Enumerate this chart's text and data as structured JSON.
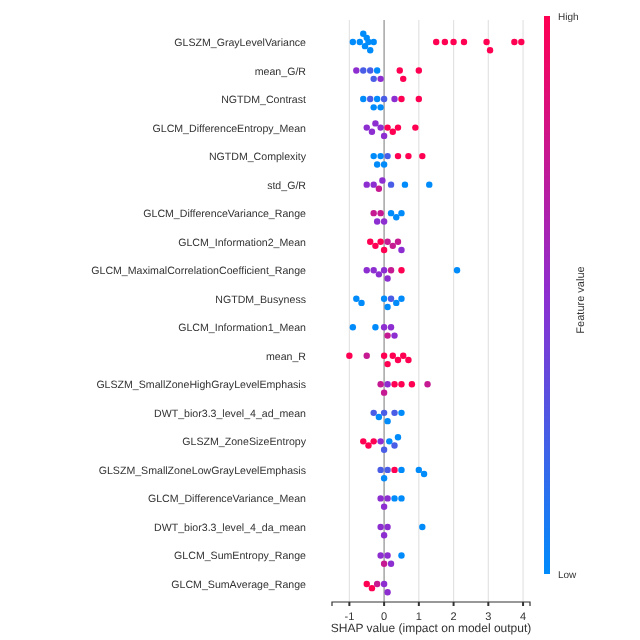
{
  "chart_data": {
    "type": "scatter",
    "orientation": "horizontal",
    "xlabel": "SHAP value (impact on model output)",
    "clabel": "Feature value",
    "annotations": [
      "High",
      "Low"
    ],
    "grid": "x",
    "marker": "circle",
    "categories": [
      "GLSZM_GrayLevelVariance",
      "mean_G/R",
      "NGTDM_Contrast",
      "GLCM_DifferenceEntropy_Mean",
      "NGTDM_Complexity",
      "std_G/R",
      "GLCM_DifferenceVariance_Range",
      "GLCM_Information2_Mean",
      "GLCM_MaximalCorrelationCoefficient_Range",
      "NGTDM_Busyness",
      "GLCM_Information1_Mean",
      "mean_R",
      "GLSZM_SmallZoneHighGrayLevelEmphasis",
      "DWT_bior3.3_level_4_ad_mean",
      "GLSZM_ZoneSizeEntropy",
      "GLSZM_SmallZoneLowGrayLevelEmphasis",
      "GLCM_DifferenceVariance_Mean",
      "DWT_bior3.3_level_4_da_mean",
      "GLCM_SumEntropy_Range",
      "GLCM_SumAverage_Range"
    ],
    "xlim": [
      -1.5,
      4.2
    ],
    "xticks": [
      -1,
      0,
      1,
      2,
      3,
      4
    ],
    "series": [
      {
        "values": [
          -0.9,
          -0.8,
          -0.6,
          -0.5,
          -0.3,
          -0.5,
          -0.3,
          -0.4,
          -0.5,
          -0.8,
          -0.9,
          -1.0,
          -0.1,
          -0.3,
          -0.6,
          -0.1,
          -0.1,
          -0.1,
          -0.1,
          -0.5
        ],
        "colors": [
          "#008bfb",
          "#8d2ed0",
          "#008bfb",
          "#8d2ed0",
          "#008bfb",
          "#8d2ed0",
          "#c61a92",
          "#ff0052",
          "#8d2ed0",
          "#008bfb",
          "#008bfb",
          "#ff0052",
          "#c61a92",
          "#4a5de6",
          "#ff0052",
          "#4a5de6",
          "#8d2ed0",
          "#8d2ed0",
          "#8d2ed0",
          "#ff0052"
        ]
      },
      {
        "values": [
          -0.7,
          -0.6,
          -0.4,
          -0.35,
          -0.2,
          -0.3,
          -0.2,
          -0.25,
          -0.3,
          -0.65,
          -0.25,
          -0.5,
          0,
          -0.15,
          -0.45,
          0,
          0,
          0,
          0,
          -0.35
        ],
        "colors": [
          "#008bfb",
          "#4a5de6",
          "#4a5de6",
          "#8d2ed0",
          "#008bfb",
          "#8d2ed0",
          "#8d2ed0",
          "#ff0052",
          "#8d2ed0",
          "#008bfb",
          "#008bfb",
          "#c61a92",
          "#c61a92",
          "#008bfb",
          "#ff0052",
          "#008bfb",
          "#8d2ed0",
          "#8d2ed0",
          "#c61a92",
          "#ff0052"
        ]
      },
      {
        "values": [
          -0.55,
          -0.4,
          -0.3,
          -0.25,
          -0.1,
          -0.15,
          -0.1,
          -0.1,
          -0.15,
          0,
          0,
          0,
          0.1,
          0,
          -0.3,
          0.1,
          0.1,
          0.1,
          0.1,
          -0.2
        ],
        "colors": [
          "#008bfb",
          "#4a5de6",
          "#008bfb",
          "#8d2ed0",
          "#008bfb",
          "#c61a92",
          "#c61a92",
          "#ff0052",
          "#8d2ed0",
          "#008bfb",
          "#8d2ed0",
          "#ff0052",
          "#8d2ed0",
          "#4a5de6",
          "#ff0052",
          "#4a5de6",
          "#8d2ed0",
          "#8d2ed0",
          "#8d2ed0",
          "#c61a92"
        ]
      },
      {
        "values": [
          -0.5,
          -0.3,
          -0.2,
          -0.1,
          0,
          -0.05,
          0,
          0,
          0,
          0.1,
          0.1,
          0.1,
          0.3,
          0.1,
          -0.1,
          0.3,
          0.3,
          1.1,
          0.2,
          0
        ],
        "colors": [
          "#008bfb",
          "#4a5de6",
          "#008bfb",
          "#8d2ed0",
          "#008bfb",
          "#8d2ed0",
          "#8d2ed0",
          "#ff0052",
          "#8d2ed0",
          "#008bfb",
          "#c61a92",
          "#ff0052",
          "#ff0052",
          "#008bfb",
          "#8d2ed0",
          "#ff0052",
          "#008bfb",
          "#008bfb",
          "#8d2ed0",
          "#8d2ed0"
        ]
      },
      {
        "values": [
          -0.4,
          -0.2,
          -0.1,
          0,
          0.1,
          0.2,
          0.2,
          0.1,
          0.1,
          0.2,
          0.2,
          0.25,
          0.5,
          0.3,
          0,
          0.5,
          0.5,
          null,
          0.5,
          0.1
        ],
        "colors": [
          "#008bfb",
          "#008bfb",
          "#008bfb",
          "#8d2ed0",
          "#4a5de6",
          "#4a5de6",
          "#008bfb",
          "#c61a92",
          "#8d2ed0",
          "#4a5de6",
          "#8d2ed0",
          "#ff0052",
          "#ff0052",
          "#4a5de6",
          "#4a5de6",
          "#008bfb",
          "#008bfb",
          null,
          "#008bfb",
          "#8d2ed0"
        ]
      },
      {
        "values": [
          -0.3,
          -0.1,
          0,
          0.1,
          0.4,
          0.6,
          0.35,
          0.25,
          0.2,
          0.35,
          0.3,
          0.4,
          0.8,
          0.5,
          0.15,
          1.0,
          null,
          null,
          null,
          null
        ],
        "colors": [
          "#008bfb",
          "#8d2ed0",
          "#4a5de6",
          "#ff0052",
          "#ff0052",
          "#008bfb",
          "#008bfb",
          "#c61a92",
          "#c61a92",
          "#008bfb",
          "#8d2ed0",
          "#ff0052",
          "#ff0052",
          "#008bfb",
          "#008bfb",
          "#008bfb",
          null,
          null,
          null,
          null
        ]
      },
      {
        "values": [
          -0.6,
          0.45,
          0.3,
          0.25,
          0.7,
          1.3,
          0.5,
          0.4,
          0.5,
          0.5,
          null,
          0.55,
          1.25,
          null,
          0.3,
          1.15,
          null,
          null,
          null,
          null
        ],
        "colors": [
          "#008bfb",
          "#ff0052",
          "#8d2ed0",
          "#ff0052",
          "#ff0052",
          "#008bfb",
          "#008bfb",
          "#c61a92",
          "#ff0052",
          "#008bfb",
          null,
          "#ff0052",
          "#c61a92",
          null,
          "#4a5de6",
          "#008bfb",
          null,
          null,
          null,
          null
        ]
      },
      {
        "values": [
          -0.45,
          0.55,
          0.5,
          0.4,
          1.1,
          null,
          null,
          0.5,
          2.1,
          null,
          null,
          0.7,
          null,
          null,
          0.4,
          null,
          null,
          null,
          null,
          null
        ],
        "colors": [
          "#008bfb",
          "#ff0052",
          "#ff0052",
          "#ff0052",
          "#ff0052",
          null,
          null,
          "#8d2ed0",
          "#008bfb",
          null,
          null,
          "#ff0052",
          null,
          null,
          "#008bfb",
          null,
          null,
          null,
          null,
          null
        ]
      },
      {
        "values": [
          1.5,
          1.0,
          1.0,
          0.9,
          null,
          null,
          null,
          null,
          null,
          null,
          null,
          null,
          null,
          null,
          null,
          null,
          null,
          null,
          null,
          null
        ],
        "colors": [
          "#ff0052",
          "#ff0052",
          "#ff0052",
          "#ff0052",
          null,
          null,
          null,
          null,
          null,
          null,
          null,
          null,
          null,
          null,
          null,
          null,
          null,
          null,
          null,
          null
        ]
      },
      {
        "values": [
          1.75,
          null,
          null,
          null,
          null,
          null,
          null,
          null,
          null,
          null,
          null,
          null,
          null,
          null,
          null,
          null,
          null,
          null,
          null,
          null
        ],
        "colors": [
          "#ff0052",
          null,
          null,
          null,
          null,
          null,
          null,
          null,
          null,
          null,
          null,
          null,
          null,
          null,
          null,
          null,
          null,
          null,
          null,
          null
        ]
      },
      {
        "values": [
          2.0,
          null,
          null,
          null,
          null,
          null,
          null,
          null,
          null,
          null,
          null,
          null,
          null,
          null,
          null,
          null,
          null,
          null,
          null,
          null
        ],
        "colors": [
          "#ff0052",
          null,
          null,
          null,
          null,
          null,
          null,
          null,
          null,
          null,
          null,
          null,
          null,
          null,
          null,
          null,
          null,
          null,
          null,
          null
        ]
      },
      {
        "values": [
          2.3,
          null,
          null,
          null,
          null,
          null,
          null,
          null,
          null,
          null,
          null,
          null,
          null,
          null,
          null,
          null,
          null,
          null,
          null,
          null
        ],
        "colors": [
          "#ff0052",
          null,
          null,
          null,
          null,
          null,
          null,
          null,
          null,
          null,
          null,
          null,
          null,
          null,
          null,
          null,
          null,
          null,
          null,
          null
        ]
      },
      {
        "values": [
          2.95,
          null,
          null,
          null,
          null,
          null,
          null,
          null,
          null,
          null,
          null,
          null,
          null,
          null,
          null,
          null,
          null,
          null,
          null,
          null
        ],
        "colors": [
          "#ff0052",
          null,
          null,
          null,
          null,
          null,
          null,
          null,
          null,
          null,
          null,
          null,
          null,
          null,
          null,
          null,
          null,
          null,
          null,
          null
        ]
      },
      {
        "values": [
          3.05,
          null,
          null,
          null,
          null,
          null,
          null,
          null,
          null,
          null,
          null,
          null,
          null,
          null,
          null,
          null,
          null,
          null,
          null,
          null
        ],
        "colors": [
          "#ff0052",
          null,
          null,
          null,
          null,
          null,
          null,
          null,
          null,
          null,
          null,
          null,
          null,
          null,
          null,
          null,
          null,
          null,
          null,
          null
        ]
      },
      {
        "values": [
          3.75,
          null,
          null,
          null,
          null,
          null,
          null,
          null,
          null,
          null,
          null,
          null,
          null,
          null,
          null,
          null,
          null,
          null,
          null,
          null
        ],
        "colors": [
          "#ff0052",
          null,
          null,
          null,
          null,
          null,
          null,
          null,
          null,
          null,
          null,
          null,
          null,
          null,
          null,
          null,
          null,
          null,
          null,
          null
        ]
      },
      {
        "values": [
          3.95,
          null,
          null,
          null,
          null,
          null,
          null,
          null,
          null,
          null,
          null,
          null,
          null,
          null,
          null,
          null,
          null,
          null,
          null,
          null
        ],
        "colors": [
          "#ff0052",
          null,
          null,
          null,
          null,
          null,
          null,
          null,
          null,
          null,
          null,
          null,
          null,
          null,
          null,
          null,
          null,
          null,
          null,
          null
        ]
      }
    ]
  }
}
